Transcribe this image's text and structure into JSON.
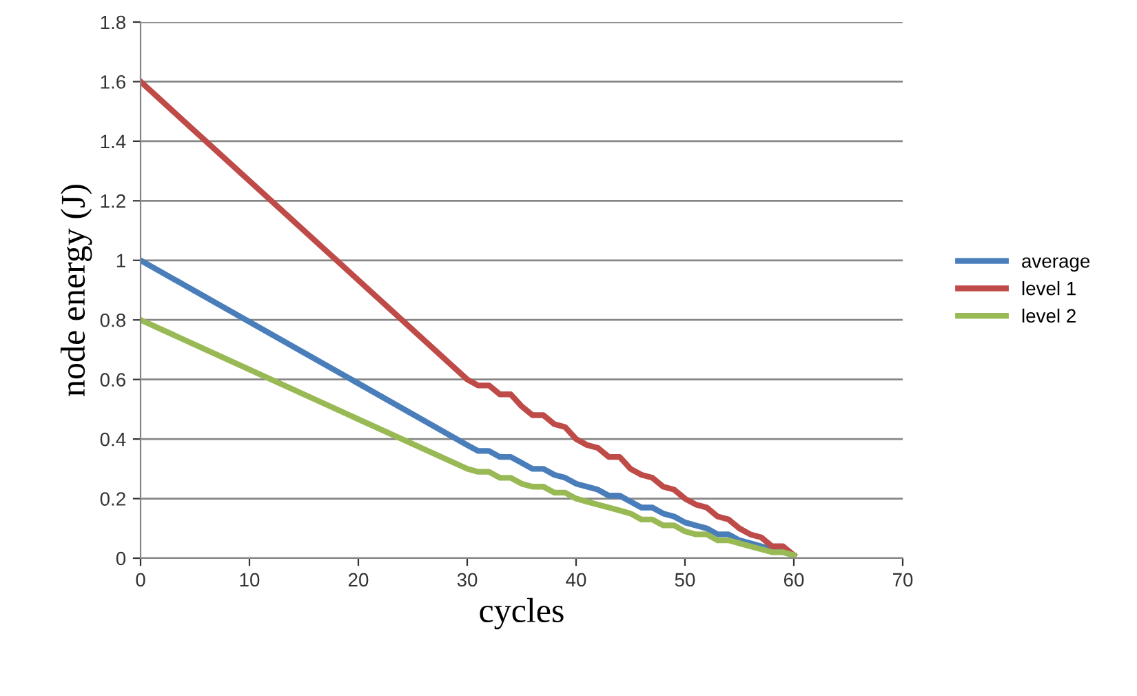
{
  "chart_data": {
    "type": "line",
    "xlabel": "cycles",
    "ylabel": "node energy (J)",
    "xlim": [
      0,
      70
    ],
    "xticks": [
      0,
      10,
      20,
      30,
      40,
      50,
      60,
      70
    ],
    "ylim": [
      0,
      1.8
    ],
    "yticks": [
      0,
      {
        "value": 0.2,
        "label": "0.2"
      },
      {
        "value": 0.4,
        "label": "0.4"
      },
      {
        "value": 0.6,
        "label": "0.6"
      },
      {
        "value": 0.8,
        "label": "0.8"
      },
      1,
      {
        "value": 1.2,
        "label": "1.2"
      },
      {
        "value": 1.4,
        "label": "1.4"
      },
      {
        "value": 1.6,
        "label": "1.6"
      },
      {
        "value": 1.8,
        "label": "1.8"
      }
    ],
    "grid": "y",
    "legend": "right",
    "marker": "none",
    "line_style": "solid",
    "x": [
      0,
      30,
      31,
      32,
      33,
      34,
      35,
      36,
      37,
      38,
      39,
      40,
      41,
      42,
      43,
      44,
      45,
      46,
      47,
      48,
      49,
      50,
      51,
      52,
      53,
      54,
      55,
      56,
      57,
      58,
      59,
      60
    ],
    "series": [
      {
        "name": "average",
        "color": "#4a7ebb",
        "values": [
          1.0,
          0.38,
          0.36,
          0.36,
          0.34,
          0.34,
          0.32,
          0.3,
          0.3,
          0.28,
          0.27,
          0.25,
          0.24,
          0.23,
          0.21,
          0.21,
          0.19,
          0.17,
          0.17,
          0.15,
          0.14,
          0.12,
          0.11,
          0.1,
          0.08,
          0.08,
          0.06,
          0.05,
          0.04,
          0.03,
          0.02,
          0.01
        ]
      },
      {
        "name": "level 1",
        "color": "#be4b48",
        "values": [
          1.6,
          0.6,
          0.58,
          0.58,
          0.55,
          0.55,
          0.51,
          0.48,
          0.48,
          0.45,
          0.44,
          0.4,
          0.38,
          0.37,
          0.34,
          0.34,
          0.3,
          0.28,
          0.27,
          0.24,
          0.23,
          0.2,
          0.18,
          0.17,
          0.14,
          0.13,
          0.1,
          0.08,
          0.07,
          0.04,
          0.04,
          0.01
        ]
      },
      {
        "name": "level 2",
        "color": "#98b954",
        "values": [
          0.8,
          0.3,
          0.29,
          0.29,
          0.27,
          0.27,
          0.25,
          0.24,
          0.24,
          0.22,
          0.22,
          0.2,
          0.19,
          0.18,
          0.17,
          0.16,
          0.15,
          0.13,
          0.13,
          0.11,
          0.11,
          0.09,
          0.08,
          0.08,
          0.06,
          0.06,
          0.05,
          0.04,
          0.03,
          0.02,
          0.02,
          0.01
        ]
      }
    ]
  }
}
